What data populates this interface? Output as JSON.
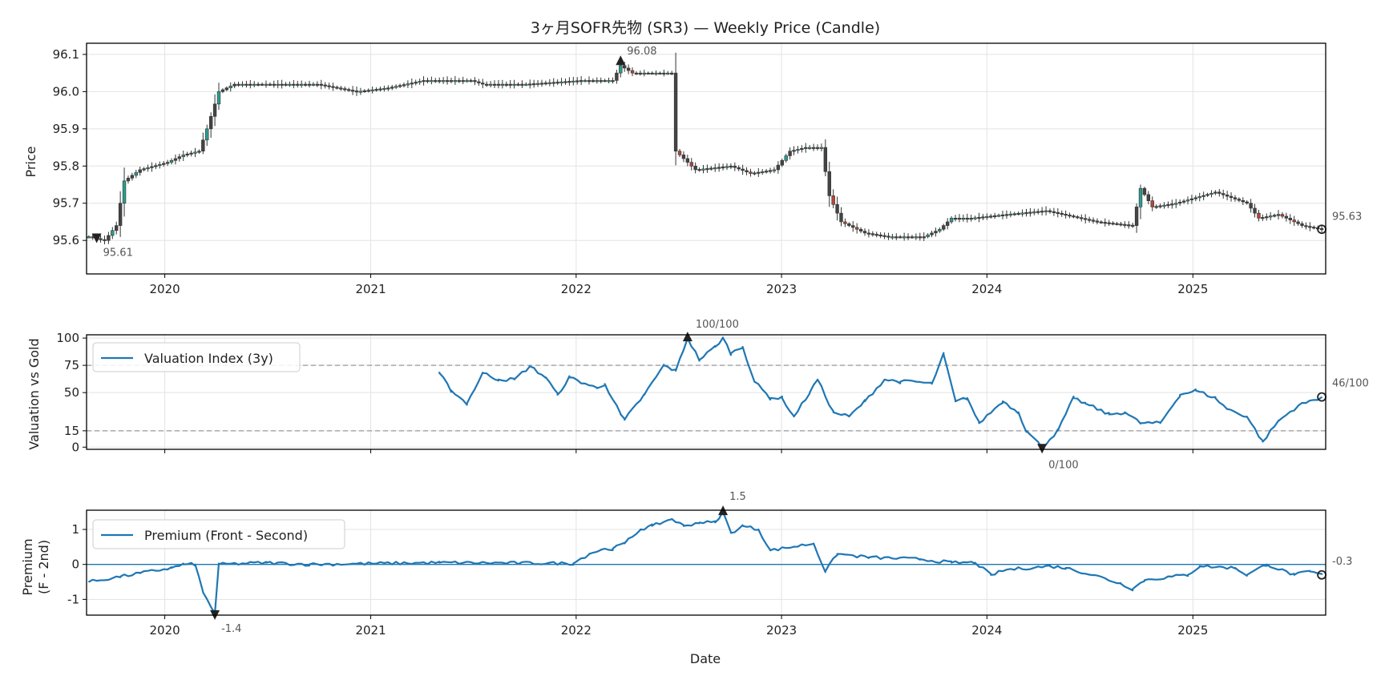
{
  "chart_data": [
    {
      "type": "candlestick",
      "title": "3ヶ月SOFR先物 (SR3) — Weekly Price (Candle)",
      "ylabel": "Price",
      "x_range": [
        "2019-08-15",
        "2025-08-25"
      ],
      "ylim": [
        95.51,
        96.13
      ],
      "yticks": [
        95.6,
        95.7,
        95.8,
        95.9,
        96.0,
        96.1
      ],
      "ytick_labels": [
        "95.6",
        "95.7",
        "95.8",
        "95.9",
        "96.0",
        "96.1"
      ],
      "xtick_labels": [
        "2020",
        "2021",
        "2022",
        "2023",
        "2024",
        "2025"
      ],
      "grid": true,
      "close_keypoints": [
        [
          "2019-08-19",
          95.61
        ],
        [
          "2019-09-16",
          95.6
        ],
        [
          "2019-10-07",
          95.64
        ],
        [
          "2019-10-21",
          95.76
        ],
        [
          "2019-11-18",
          95.79
        ],
        [
          "2020-01-06",
          95.81
        ],
        [
          "2020-02-03",
          95.83
        ],
        [
          "2020-03-02",
          95.84
        ],
        [
          "2020-03-16",
          95.9
        ],
        [
          "2020-04-06",
          96.0
        ],
        [
          "2020-05-04",
          96.02
        ],
        [
          "2020-06-29",
          96.02
        ],
        [
          "2020-09-28",
          96.02
        ],
        [
          "2020-12-07",
          96.0
        ],
        [
          "2021-02-01",
          96.01
        ],
        [
          "2021-04-05",
          96.03
        ],
        [
          "2021-06-28",
          96.03
        ],
        [
          "2021-07-19",
          96.02
        ],
        [
          "2021-10-04",
          96.02
        ],
        [
          "2022-01-10",
          96.03
        ],
        [
          "2022-03-07",
          96.03
        ],
        [
          "2022-03-21",
          96.07
        ],
        [
          "2022-04-11",
          96.05
        ],
        [
          "2022-06-20",
          96.05
        ],
        [
          "2022-06-27",
          95.84
        ],
        [
          "2022-08-01",
          95.79
        ],
        [
          "2022-10-03",
          95.8
        ],
        [
          "2022-11-07",
          95.78
        ],
        [
          "2022-12-19",
          95.79
        ],
        [
          "2023-01-16",
          95.84
        ],
        [
          "2023-02-13",
          95.85
        ],
        [
          "2023-03-13",
          95.85
        ],
        [
          "2023-03-27",
          95.72
        ],
        [
          "2023-04-17",
          95.65
        ],
        [
          "2023-05-29",
          95.62
        ],
        [
          "2023-07-10",
          95.61
        ],
        [
          "2023-09-11",
          95.61
        ],
        [
          "2023-10-09",
          95.63
        ],
        [
          "2023-10-30",
          95.66
        ],
        [
          "2023-12-04",
          95.66
        ],
        [
          "2024-02-05",
          95.67
        ],
        [
          "2024-04-15",
          95.68
        ],
        [
          "2024-07-15",
          95.65
        ],
        [
          "2024-09-16",
          95.64
        ],
        [
          "2024-09-30",
          95.74
        ],
        [
          "2024-10-21",
          95.69
        ],
        [
          "2024-12-02",
          95.7
        ],
        [
          "2025-02-10",
          95.73
        ],
        [
          "2025-04-07",
          95.7
        ],
        [
          "2025-04-28",
          95.66
        ],
        [
          "2025-06-02",
          95.67
        ],
        [
          "2025-07-14",
          95.64
        ],
        [
          "2025-08-18",
          95.63
        ]
      ],
      "annotations": {
        "max": {
          "date": "2022-03-21",
          "value": 96.08,
          "label": "96.08"
        },
        "min": {
          "date": "2019-09-02",
          "value": 95.61,
          "label": "95.61"
        },
        "last": {
          "date": "2025-08-18",
          "value": 95.63,
          "label": "95.63"
        }
      },
      "colors": {
        "up": "#2a9d8f",
        "down": "#b5453a",
        "body": "#444444"
      }
    },
    {
      "type": "line",
      "ylabel": "Valuation vs Gold",
      "ylim": [
        -2,
        103
      ],
      "yticks": [
        0,
        15,
        50,
        75,
        100
      ],
      "ytick_labels": [
        "0",
        "15",
        "50",
        "75",
        "100"
      ],
      "reference_lines": [
        15,
        75
      ],
      "series": [
        {
          "name": "Valuation Index (3y)",
          "color": "#1f77b4",
          "keypoints": [
            [
              "2021-05-03",
              68
            ],
            [
              "2021-05-24",
              52
            ],
            [
              "2021-06-21",
              40
            ],
            [
              "2021-07-19",
              68
            ],
            [
              "2021-08-16",
              62
            ],
            [
              "2021-09-13",
              62
            ],
            [
              "2021-10-11",
              74
            ],
            [
              "2021-11-08",
              64
            ],
            [
              "2021-11-29",
              48
            ],
            [
              "2021-12-20",
              64
            ],
            [
              "2022-02-07",
              54
            ],
            [
              "2022-02-21",
              58
            ],
            [
              "2022-03-21",
              30
            ],
            [
              "2022-03-28",
              25
            ],
            [
              "2022-05-02",
              48
            ],
            [
              "2022-06-06",
              75
            ],
            [
              "2022-06-27",
              70
            ],
            [
              "2022-07-18",
              100
            ],
            [
              "2022-08-08",
              80
            ],
            [
              "2022-09-05",
              92
            ],
            [
              "2022-09-19",
              100
            ],
            [
              "2022-10-03",
              86
            ],
            [
              "2022-10-24",
              92
            ],
            [
              "2022-11-14",
              60
            ],
            [
              "2022-12-12",
              45
            ],
            [
              "2023-01-02",
              45
            ],
            [
              "2023-01-23",
              28
            ],
            [
              "2023-02-20",
              50
            ],
            [
              "2023-03-06",
              62
            ],
            [
              "2023-04-03",
              32
            ],
            [
              "2023-05-01",
              28
            ],
            [
              "2023-05-29",
              42
            ],
            [
              "2023-07-03",
              62
            ],
            [
              "2023-07-31",
              60
            ],
            [
              "2023-08-28",
              60
            ],
            [
              "2023-09-25",
              58
            ],
            [
              "2023-10-16",
              85
            ],
            [
              "2023-11-06",
              42
            ],
            [
              "2023-11-27",
              45
            ],
            [
              "2023-12-18",
              22
            ],
            [
              "2024-01-29",
              42
            ],
            [
              "2024-02-26",
              32
            ],
            [
              "2024-03-11",
              15
            ],
            [
              "2024-04-08",
              0
            ],
            [
              "2024-05-06",
              15
            ],
            [
              "2024-06-03",
              45
            ],
            [
              "2024-06-24",
              40
            ],
            [
              "2024-08-05",
              30
            ],
            [
              "2024-09-02",
              32
            ],
            [
              "2024-09-30",
              22
            ],
            [
              "2024-11-04",
              22
            ],
            [
              "2024-12-09",
              48
            ],
            [
              "2025-01-06",
              52
            ],
            [
              "2025-02-10",
              45
            ],
            [
              "2025-03-03",
              35
            ],
            [
              "2025-04-07",
              28
            ],
            [
              "2025-05-05",
              5
            ],
            [
              "2025-06-02",
              24
            ],
            [
              "2025-07-07",
              38
            ],
            [
              "2025-08-18",
              46
            ]
          ]
        }
      ],
      "annotations": {
        "max": {
          "date": "2022-07-18",
          "value": 100,
          "label": "100/100"
        },
        "min": {
          "date": "2024-04-08",
          "value": 0,
          "label": "0/100"
        },
        "last": {
          "date": "2025-08-18",
          "value": 46,
          "label": "46/100"
        }
      },
      "legend": "top-left"
    },
    {
      "type": "line",
      "ylabel": "Premium\n(F - 2nd)",
      "xlabel": "Date",
      "ylim": [
        -1.45,
        1.55
      ],
      "yticks": [
        -1,
        0,
        1
      ],
      "ytick_labels": [
        "-1",
        "0",
        "1"
      ],
      "xtick_labels": [
        "2020",
        "2021",
        "2022",
        "2023",
        "2024",
        "2025"
      ],
      "zero_line": true,
      "series": [
        {
          "name": "Premium (Front - Second)",
          "color": "#1f77b4",
          "keypoints": [
            [
              "2019-08-19",
              -0.5
            ],
            [
              "2019-10-14",
              -0.35
            ],
            [
              "2019-11-18",
              -0.25
            ],
            [
              "2020-01-13",
              -0.1
            ],
            [
              "2020-02-03",
              0.0
            ],
            [
              "2020-02-24",
              0.0
            ],
            [
              "2020-03-09",
              -0.8
            ],
            [
              "2020-03-30",
              -1.4
            ],
            [
              "2020-04-06",
              0.0
            ],
            [
              "2020-06-29",
              0.05
            ],
            [
              "2020-09-14",
              0.0
            ],
            [
              "2021-05-03",
              0.05
            ],
            [
              "2021-12-27",
              0.03
            ],
            [
              "2022-01-03",
              0.1
            ],
            [
              "2022-01-24",
              0.3
            ],
            [
              "2022-02-14",
              0.42
            ],
            [
              "2022-03-07",
              0.45
            ],
            [
              "2022-03-28",
              0.6
            ],
            [
              "2022-04-25",
              1.0
            ],
            [
              "2022-05-16",
              1.1
            ],
            [
              "2022-06-20",
              1.3
            ],
            [
              "2022-07-11",
              1.1
            ],
            [
              "2022-08-08",
              1.2
            ],
            [
              "2022-09-05",
              1.2
            ],
            [
              "2022-09-19",
              1.5
            ],
            [
              "2022-10-03",
              0.9
            ],
            [
              "2022-10-24",
              1.1
            ],
            [
              "2022-11-21",
              1.0
            ],
            [
              "2022-12-12",
              0.4
            ],
            [
              "2023-02-27",
              0.6
            ],
            [
              "2023-03-20",
              -0.2
            ],
            [
              "2023-04-10",
              0.3
            ],
            [
              "2023-06-05",
              0.2
            ],
            [
              "2023-09-04",
              0.15
            ],
            [
              "2023-10-30",
              0.05
            ],
            [
              "2023-12-11",
              0.05
            ],
            [
              "2024-01-08",
              -0.3
            ],
            [
              "2024-02-05",
              -0.15
            ],
            [
              "2024-04-22",
              -0.05
            ],
            [
              "2024-05-20",
              -0.1
            ],
            [
              "2024-07-08",
              -0.3
            ],
            [
              "2024-08-26",
              -0.55
            ],
            [
              "2024-09-16",
              -0.7
            ],
            [
              "2024-10-07",
              -0.45
            ],
            [
              "2024-11-25",
              -0.35
            ],
            [
              "2024-12-23",
              -0.3
            ],
            [
              "2025-01-13",
              -0.05
            ],
            [
              "2025-03-17",
              -0.1
            ],
            [
              "2025-04-07",
              -0.3
            ],
            [
              "2025-05-12",
              0.0
            ],
            [
              "2025-06-30",
              -0.3
            ],
            [
              "2025-07-28",
              -0.2
            ],
            [
              "2025-08-18",
              -0.3
            ]
          ]
        }
      ],
      "annotations": {
        "max": {
          "date": "2022-09-19",
          "value": 1.5,
          "label": "1.5"
        },
        "min": {
          "date": "2020-03-30",
          "value": -1.4,
          "label": "-1.4"
        },
        "last": {
          "date": "2025-08-18",
          "value": -0.3,
          "label": "-0.3"
        }
      },
      "legend": "top-left"
    }
  ]
}
